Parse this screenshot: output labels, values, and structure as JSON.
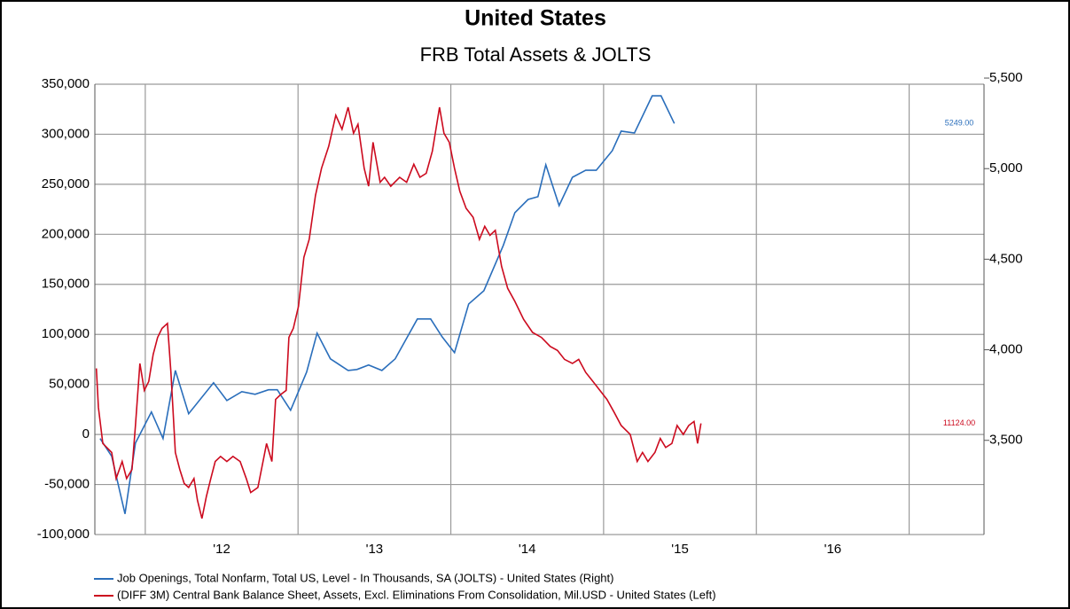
{
  "chart_data": {
    "type": "line",
    "title": "United States",
    "subtitle": "FRB Total Assets & JOLTS",
    "xlim": [
      2011.67,
      2017.49
    ],
    "xticks": [
      {
        "value": 2012.5,
        "label": "'12"
      },
      {
        "value": 2013.5,
        "label": "'13"
      },
      {
        "value": 2014.5,
        "label": "'14"
      },
      {
        "value": 2015.5,
        "label": "'15"
      },
      {
        "value": 2016.5,
        "label": "'16"
      }
    ],
    "xgrid": [
      2012,
      2013,
      2014,
      2015,
      2016,
      2017
    ],
    "ylim": [
      -100000,
      350000
    ],
    "yticks": [
      {
        "value": -100000,
        "label": "-100,000"
      },
      {
        "value": -50000,
        "label": "-50,000"
      },
      0,
      {
        "value": 50000,
        "label": "50,000"
      },
      {
        "value": 100000,
        "label": "100,000"
      },
      {
        "value": 150000,
        "label": "150,000"
      },
      {
        "value": 200000,
        "label": "200,000"
      },
      {
        "value": 250000,
        "label": "250,000"
      },
      {
        "value": 300000,
        "label": "300,000"
      },
      {
        "value": 350000,
        "label": "350,000"
      }
    ],
    "y2lim": [
      2980,
      5466
    ],
    "y2ticks": [
      {
        "value": 3500,
        "label": "3,500"
      },
      {
        "value": 4000,
        "label": "4,000"
      },
      {
        "value": 4500,
        "label": "4,500"
      },
      {
        "value": 5000,
        "label": "5,000"
      },
      {
        "value": 5500,
        "label": "5,500"
      }
    ],
    "grid": true,
    "legend": "bottom",
    "series": [
      {
        "name": "Job Openings, Total Nonfarm, Total US, Level - In Thousands, SA (JOLTS) - United States  (Right)",
        "color": "#2a6ebb",
        "axis": "y2",
        "x": [
          2011.704,
          2011.78,
          2011.867,
          2011.936,
          2012.04,
          2012.116,
          2012.197,
          2012.284,
          2012.447,
          2012.534,
          2012.632,
          2012.719,
          2012.806,
          2012.864,
          2012.951,
          2013.056,
          2013.125,
          2013.212,
          2013.328,
          2013.386,
          2013.462,
          2013.549,
          2013.636,
          2013.781,
          2013.868,
          2013.943,
          2014.024,
          2014.117,
          2014.216,
          2014.343,
          2014.419,
          2014.506,
          2014.57,
          2014.622,
          2014.709,
          2014.796,
          2014.883,
          2014.952,
          2015.057,
          2015.115,
          2015.202,
          2015.318,
          2015.376,
          2015.463
        ],
        "values": [
          3510,
          3412,
          3094,
          3485,
          3657,
          3510,
          3886,
          3647,
          3818,
          3720,
          3769,
          3754,
          3779,
          3779,
          3666,
          3877,
          4092,
          3950,
          3886,
          3891,
          3916,
          3886,
          3950,
          4170,
          4170,
          4072,
          3984,
          4253,
          4326,
          4576,
          4757,
          4830,
          4845,
          5021,
          4796,
          4952,
          4991,
          4991,
          5099,
          5207,
          5197,
          5402,
          5402,
          5249
        ],
        "value_labels": [
          null,
          null,
          null,
          null,
          null,
          null,
          null,
          null,
          null,
          null,
          null,
          null,
          null,
          null,
          null,
          null,
          null,
          null,
          null,
          null,
          null,
          null,
          null,
          null,
          null,
          null,
          null,
          null,
          null,
          null,
          null,
          null,
          null,
          null,
          null,
          null,
          null,
          null,
          null,
          null,
          null,
          null,
          null,
          "5249.00"
        ]
      },
      {
        "name": "(DIFF 3M) Central Bank Balance Sheet, Assets, Excl. Eliminations From Consolidation, Mil.USD - United States  (Left)",
        "color": "#cc0a1e",
        "axis": "y",
        "x": [
          2011.68,
          2011.693,
          2011.722,
          2011.78,
          2011.809,
          2011.849,
          2011.878,
          2011.913,
          2011.936,
          2011.965,
          2011.994,
          2012.023,
          2012.052,
          2012.081,
          2012.11,
          2012.145,
          2012.168,
          2012.197,
          2012.226,
          2012.255,
          2012.284,
          2012.319,
          2012.342,
          2012.371,
          2012.4,
          2012.429,
          2012.458,
          2012.493,
          2012.534,
          2012.574,
          2012.621,
          2012.661,
          2012.69,
          2012.737,
          2012.771,
          2012.794,
          2012.829,
          2012.853,
          2012.887,
          2012.922,
          2012.94,
          2012.969,
          2013.003,
          2013.038,
          2013.073,
          2013.114,
          2013.154,
          2013.201,
          2013.247,
          2013.288,
          2013.328,
          2013.363,
          2013.392,
          2013.433,
          2013.462,
          2013.491,
          2013.537,
          2013.566,
          2013.607,
          2013.665,
          2013.711,
          2013.758,
          2013.798,
          2013.839,
          2013.879,
          2013.926,
          2013.955,
          2013.99,
          2014.024,
          2014.059,
          2014.1,
          2014.146,
          2014.187,
          2014.222,
          2014.256,
          2014.291,
          2014.332,
          2014.372,
          2014.419,
          2014.477,
          2014.535,
          2014.593,
          2014.651,
          2014.698,
          2014.744,
          2014.796,
          2014.837,
          2014.883,
          2014.93,
          2014.976,
          2015.022,
          2015.07,
          2015.115,
          2015.174,
          2015.22,
          2015.255,
          2015.29,
          2015.336,
          2015.371,
          2015.406,
          2015.447,
          2015.481,
          2015.522,
          2015.557,
          2015.592,
          2015.615,
          2015.637
        ],
        "values": [
          66000,
          27000,
          -9000,
          -18000,
          -44000,
          -27000,
          -44000,
          -35000,
          9000,
          71000,
          44000,
          53000,
          80000,
          97000,
          106000,
          111000,
          62000,
          -18000,
          -35000,
          -49000,
          -53000,
          -44000,
          -66000,
          -84000,
          -62000,
          -44000,
          -27000,
          -22000,
          -27000,
          -22000,
          -27000,
          -44000,
          -58000,
          -53000,
          -27000,
          -9000,
          -27000,
          35000,
          40000,
          44000,
          97000,
          106000,
          128000,
          177000,
          195000,
          239000,
          266000,
          288000,
          319000,
          305000,
          327000,
          301000,
          310000,
          266000,
          248000,
          292000,
          252000,
          257000,
          248000,
          257000,
          252000,
          270000,
          257000,
          261000,
          283000,
          327000,
          301000,
          292000,
          266000,
          243000,
          226000,
          217000,
          195000,
          208000,
          199000,
          204000,
          168000,
          146000,
          133000,
          115000,
          102000,
          97000,
          88000,
          84000,
          75000,
          71000,
          75000,
          62000,
          53000,
          44000,
          35000,
          22000,
          9000,
          0,
          -27000,
          -18000,
          -27000,
          -18000,
          -4000,
          -13000,
          -9000,
          9000,
          0,
          9000,
          13000,
          -9000,
          11124
        ],
        "value_labels": [
          null,
          null,
          null,
          null,
          null,
          null,
          null,
          null,
          null,
          null,
          null,
          null,
          null,
          null,
          null,
          null,
          null,
          null,
          null,
          null,
          null,
          null,
          null,
          null,
          null,
          null,
          null,
          null,
          null,
          null,
          null,
          null,
          null,
          null,
          null,
          null,
          null,
          null,
          null,
          null,
          null,
          null,
          null,
          null,
          null,
          null,
          null,
          null,
          null,
          null,
          null,
          null,
          null,
          null,
          null,
          null,
          null,
          null,
          null,
          null,
          null,
          null,
          null,
          null,
          null,
          null,
          null,
          null,
          null,
          null,
          null,
          null,
          null,
          null,
          null,
          null,
          null,
          null,
          null,
          null,
          null,
          null,
          null,
          null,
          null,
          null,
          null,
          null,
          null,
          null,
          null,
          null,
          null,
          null,
          null,
          null,
          null,
          null,
          null,
          null,
          null,
          null,
          null,
          null,
          null,
          null,
          "11124.00"
        ]
      }
    ]
  }
}
